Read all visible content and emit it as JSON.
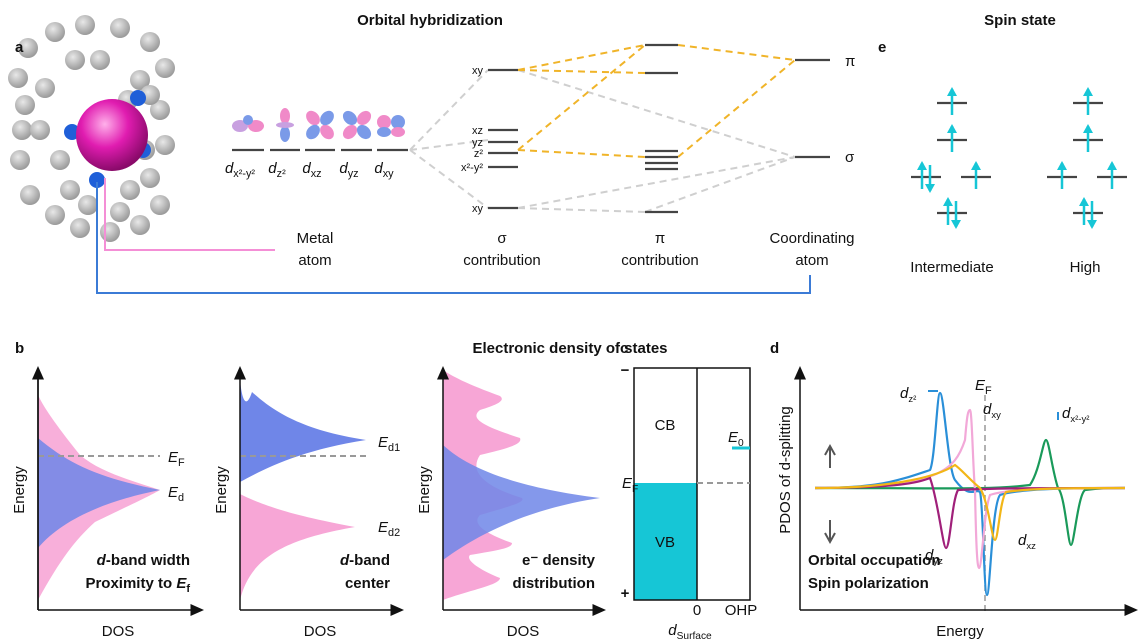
{
  "panel_a": {
    "letter": "a",
    "title": "Orbital hybridization",
    "orbitals": [
      {
        "main": "d",
        "sub": "x²-y²"
      },
      {
        "main": "d",
        "sub": "z²"
      },
      {
        "main": "d",
        "sub": "xz"
      },
      {
        "main": "d",
        "sub": "yz"
      },
      {
        "main": "d",
        "sub": "xy"
      }
    ],
    "metal_levels": [
      "xy",
      "xz",
      "yz",
      "z²",
      "x²-y²",
      "xy"
    ],
    "ligand_levels": [
      "π",
      "σ"
    ],
    "captions": [
      [
        "Metal",
        "atom"
      ],
      [
        "σ",
        "contribution"
      ],
      [
        "π",
        "contribution"
      ],
      [
        "Coordinating",
        "atom"
      ]
    ]
  },
  "panel_e": {
    "letter": "e",
    "title": "Spin state",
    "states": [
      "Intermediate",
      "High"
    ]
  },
  "section_title": "Electronic density of states",
  "panel_b": {
    "letter": "b",
    "plots": [
      {
        "y_label": "Energy",
        "x_label": "DOS",
        "levels": [
          {
            "main": "E",
            "sub": "F"
          },
          {
            "main": "E",
            "sub": "d"
          }
        ],
        "caption": [
          "d",
          "-band width",
          "Proximity to ",
          {
            "main": "E",
            "sub": "f"
          }
        ]
      },
      {
        "y_label": "Energy",
        "x_label": "DOS",
        "levels": [
          {
            "main": "E",
            "sub": "d1"
          },
          {
            "main": "E",
            "sub": "d2"
          }
        ],
        "caption": [
          "d",
          "-band",
          "center"
        ]
      },
      {
        "y_label": "Energy",
        "x_label": "DOS",
        "caption": [
          "e⁻ density",
          "distribution"
        ]
      }
    ]
  },
  "panel_c": {
    "letter": "c",
    "top": "−",
    "bottom": "+",
    "bands": [
      "CB",
      "VB"
    ],
    "fermi": {
      "main": "E",
      "sub": "F"
    },
    "e0": {
      "main": "E",
      "sub": "0"
    },
    "x_ticks": [
      "0",
      "OHP"
    ],
    "x_label": {
      "main": "d",
      "sub": "Surface"
    }
  },
  "panel_d": {
    "letter": "d",
    "y_label": "PDOS of d-splitting",
    "x_label": "Energy",
    "fermi": {
      "main": "E",
      "sub": "F"
    },
    "orbitals": [
      {
        "main": "d",
        "sub": "z²"
      },
      {
        "main": "d",
        "sub": "xy"
      },
      {
        "main": "d",
        "sub": "x²-y²"
      },
      {
        "main": "d",
        "sub": "yz"
      },
      {
        "main": "d",
        "sub": "xz"
      }
    ],
    "caption": [
      "Orbital occupation",
      "Spin polarization"
    ]
  }
}
